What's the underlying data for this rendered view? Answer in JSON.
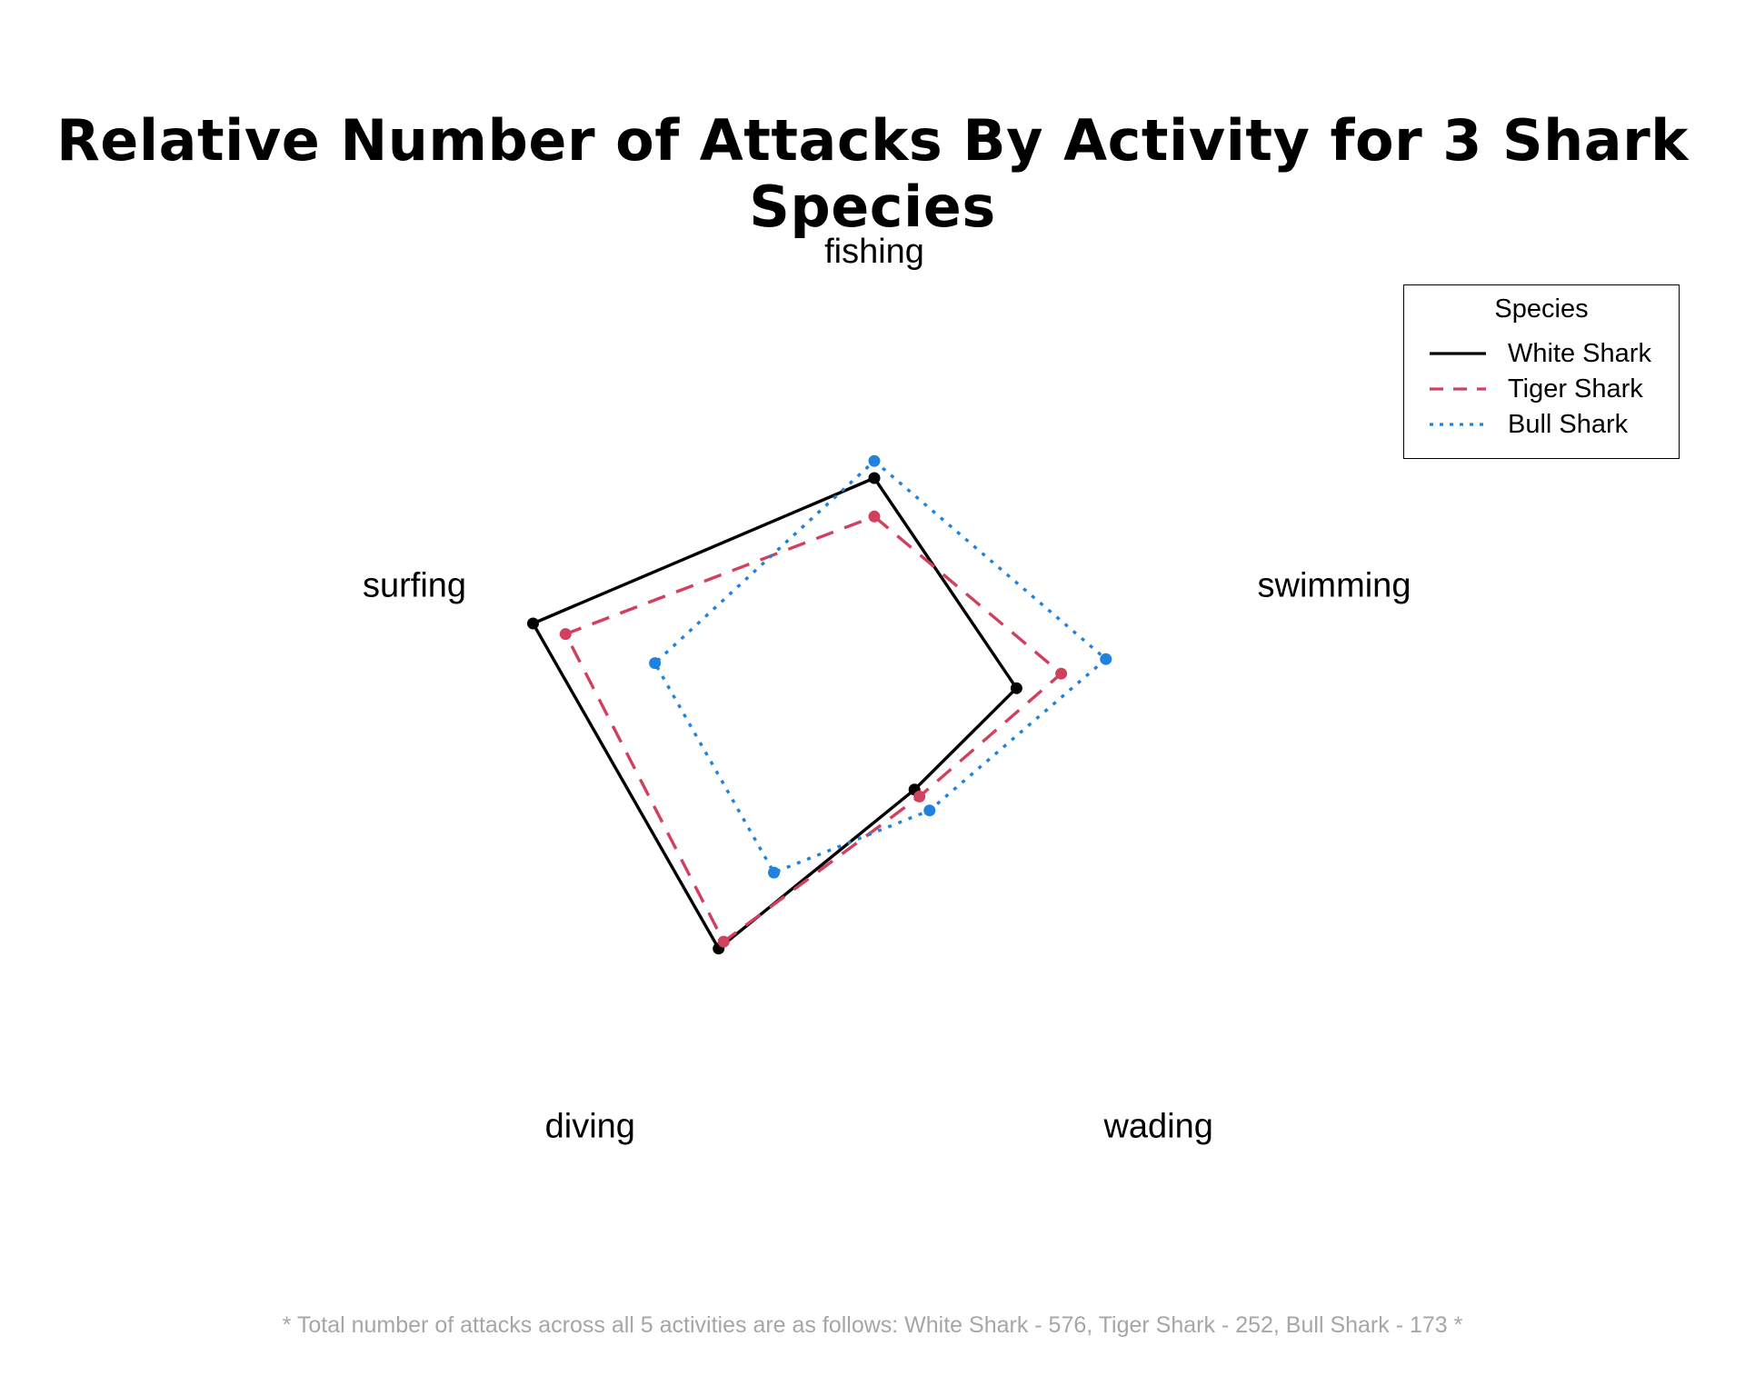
{
  "chart_data": {
    "type": "radar",
    "title": "Relative Number of Attacks By Activity for 3 Shark Species",
    "axes": [
      "fishing",
      "swimming",
      "wading",
      "diving",
      "surfing"
    ],
    "rmax": 1.0,
    "grid": false,
    "legend": {
      "title": "Species",
      "placement": "top-right"
    },
    "series": [
      {
        "name": "White Shark",
        "color": "#000000",
        "dash": "solid",
        "values": [
          0.6,
          0.35,
          0.16,
          0.62,
          0.84
        ]
      },
      {
        "name": "Tiger Shark",
        "color": "#d1405e",
        "dash": "dashed",
        "values": [
          0.51,
          0.46,
          0.18,
          0.6,
          0.76
        ]
      },
      {
        "name": "Bull Shark",
        "color": "#1f82de",
        "dash": "dotted",
        "values": [
          0.64,
          0.57,
          0.22,
          0.4,
          0.54
        ]
      }
    ],
    "footnote": "* Total number of attacks across all 5 activities are as follows: White Shark - 576, Tiger Shark - 252, Bull Shark - 173 *"
  }
}
